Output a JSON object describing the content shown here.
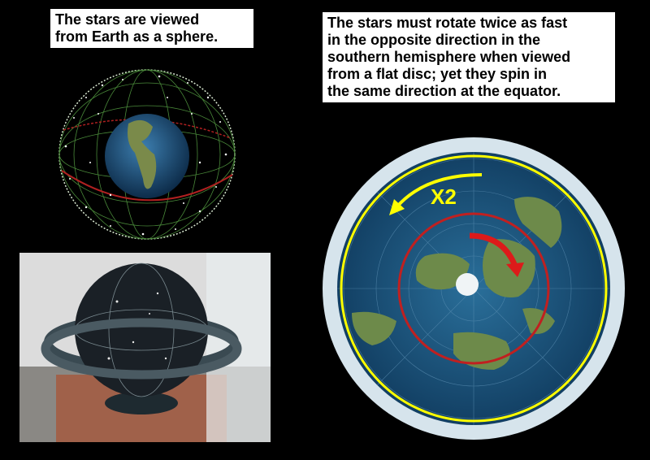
{
  "left_caption": {
    "lines": [
      "The stars are viewed",
      "from Earth as a sphere."
    ]
  },
  "right_caption": {
    "lines": [
      "The stars must rotate twice as fast",
      "in the opposite direction in the",
      "southern hemisphere when viewed",
      "from a flat disc; yet they spin in",
      "the same direction at the equator."
    ]
  },
  "flat_disc": {
    "speed_label": "X2"
  },
  "colors": {
    "background": "#000000",
    "ocean": "#1c5b86",
    "arrow_outer": "#ffff00",
    "arrow_inner": "#dd1a1a",
    "ring_red": "#c02020"
  }
}
